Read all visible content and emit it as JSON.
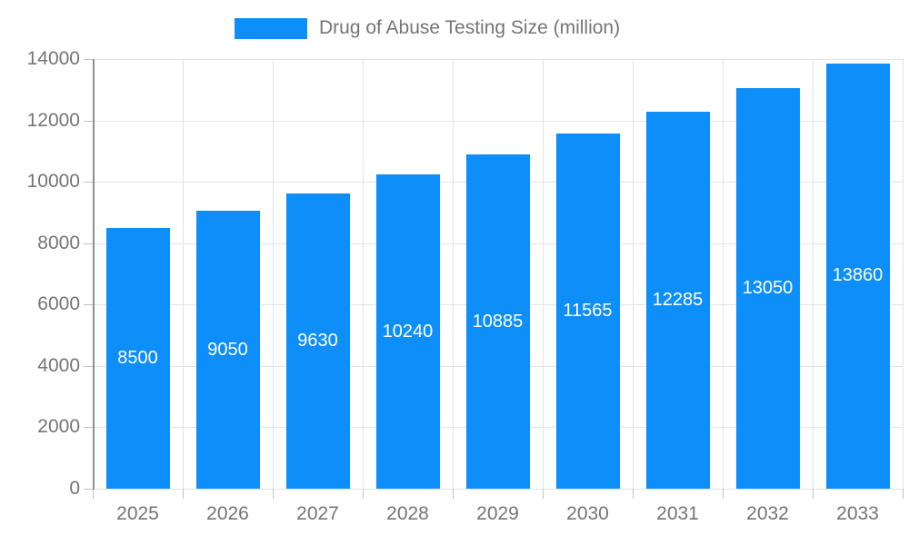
{
  "chart_data": {
    "type": "bar",
    "title": "Drug of Abuse Testing Size (million)",
    "categories": [
      "2025",
      "2026",
      "2027",
      "2028",
      "2029",
      "2030",
      "2031",
      "2032",
      "2033"
    ],
    "values": [
      8500,
      9050,
      9630,
      10240,
      10885,
      11565,
      12285,
      13050,
      13860
    ],
    "value_labels": [
      "8500",
      "9050",
      "9630",
      "10240",
      "10885",
      "11565",
      "12285",
      "13050",
      "13860"
    ],
    "xlabel": "",
    "ylabel": "",
    "ylim": [
      0,
      14000
    ],
    "yticks": [
      0,
      2000,
      4000,
      6000,
      8000,
      10000,
      12000,
      14000
    ],
    "grid": "horizontal and vertical light gray gridlines",
    "legend_position": "top-center",
    "colors": {
      "bar": "#0d8ef8",
      "value_label": "#ffffff",
      "axis_label": "#757575",
      "gridline": "#e3e3e3",
      "axis_line": "#8f8f8f",
      "tick": "#c2c2c2",
      "background": "#ffffff"
    }
  }
}
